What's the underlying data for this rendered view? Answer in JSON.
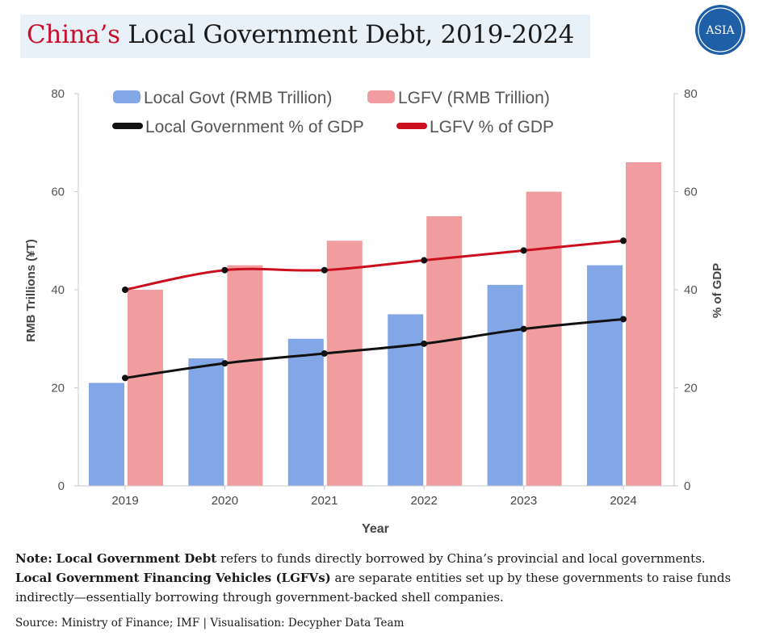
{
  "title": {
    "accent": "China’s",
    "rest": " Local Government Debt, 2019-2024"
  },
  "logo": {
    "text": "ASIA",
    "icon": "asia-logo-icon",
    "color": "#1f5fa8"
  },
  "colors": {
    "local_govt_bar": "#83a6e6",
    "lgfv_bar": "#f19c9f",
    "local_pct_line": "#111111",
    "lgfv_pct_line": "#cc0f1e"
  },
  "note": {
    "label": "Note:",
    "term1": "Local Government Debt",
    "text1": " refers to funds directly borrowed by China’s provincial and local governments.",
    "term2": "Local Government Financing Vehicles (LGFVs)",
    "text2": " are separate entities set up by these governments to raise funds indirectly—essentially borrowing through government-backed shell companies."
  },
  "source": "Source: Ministry of Finance; IMF | Visualisation: Decypher Data Team",
  "chart_data": {
    "type": "bar",
    "categories": [
      "2019",
      "2020",
      "2021",
      "2022",
      "2023",
      "2024"
    ],
    "series": [
      {
        "name": "Local Govt (RMB Trillion)",
        "kind": "bar",
        "axis": "left",
        "values": [
          21,
          26,
          30,
          35,
          41,
          45
        ]
      },
      {
        "name": "LGFV (RMB Trillion)",
        "kind": "bar",
        "axis": "left",
        "values": [
          40,
          45,
          50,
          55,
          60,
          66
        ]
      },
      {
        "name": "Local Government % of GDP",
        "kind": "line",
        "axis": "right",
        "values": [
          22,
          25,
          27,
          29,
          32,
          34
        ]
      },
      {
        "name": "LGFV % of GDP",
        "kind": "line",
        "axis": "right",
        "values": [
          40,
          44,
          44,
          46,
          48,
          50
        ]
      }
    ],
    "xlabel": "Year",
    "ylabel": "RMB Trillions (¥T)",
    "y2label": "% of GDP",
    "ylim": [
      0,
      80
    ],
    "y2lim": [
      0,
      80
    ],
    "yticks": [
      "0",
      "20",
      "40",
      "60",
      "80"
    ],
    "y2ticks": [
      "0",
      "20",
      "40",
      "60",
      "80"
    ],
    "grid": false,
    "legend": "top"
  }
}
